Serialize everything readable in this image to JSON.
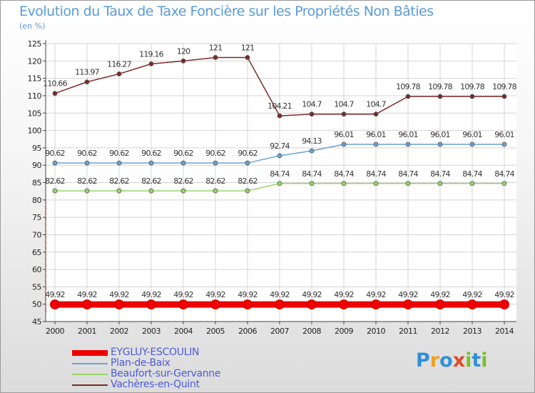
{
  "header": {
    "title": "Evolution du Taux de Taxe Foncière sur les Propriétés Non Bâties",
    "unit": "(en %)"
  },
  "logo": {
    "text": "Proxiti",
    "colors": [
      "#2f8fd8",
      "#f0a020",
      "#2f8fd8",
      "#e24a2a",
      "#7bbf2a",
      "#2f8fd8",
      "#7bbf2a"
    ]
  },
  "chart_data": {
    "type": "line",
    "title": "Evolution du Taux de Taxe Foncière sur les Propriétés Non Bâties",
    "ylabel": "(en %)",
    "xlabel": "",
    "ylim": [
      45,
      125
    ],
    "yticks": [
      45,
      50,
      55,
      60,
      65,
      70,
      75,
      80,
      85,
      90,
      95,
      100,
      105,
      110,
      115,
      120,
      125
    ],
    "x": [
      "2000",
      "2001",
      "2002",
      "2003",
      "2004",
      "2005",
      "2006",
      "2007",
      "2008",
      "2009",
      "2010",
      "2011",
      "2012",
      "2013",
      "2014"
    ],
    "grid": true,
    "legend_position": "bottom-left",
    "series": [
      {
        "name": "EYGLUY-ESCOULIN",
        "color": "#ee0000",
        "values": [
          49.92,
          49.92,
          49.92,
          49.92,
          49.92,
          49.92,
          49.92,
          49.92,
          49.92,
          49.92,
          49.92,
          49.92,
          49.92,
          49.92,
          49.92
        ],
        "labels": [
          "49.92",
          "49.92",
          "49.92",
          "49.92",
          "49.92",
          "49.92",
          "49.92",
          "49.92",
          "49.92",
          "49.92",
          "49.92",
          "49.92",
          "49.92",
          "49.92",
          "49.92"
        ]
      },
      {
        "name": "Plan-de-Baix",
        "color": "#6aa2d2",
        "values": [
          90.62,
          90.62,
          90.62,
          90.62,
          90.62,
          90.62,
          90.62,
          92.74,
          94.13,
          96.01,
          96.01,
          96.01,
          96.01,
          96.01,
          96.01
        ],
        "labels": [
          "90.62",
          "90.62",
          "90.62",
          "90.62",
          "90.62",
          "90.62",
          "90.62",
          "92.74",
          "94.13",
          "96.01",
          "96.01",
          "96.01",
          "96.01",
          "96.01",
          "96.01"
        ]
      },
      {
        "name": "Beaufort-sur-Gervanne",
        "color": "#9bd46a",
        "values": [
          82.62,
          82.62,
          82.62,
          82.62,
          82.62,
          82.62,
          82.62,
          84.74,
          84.74,
          84.74,
          84.74,
          84.74,
          84.74,
          84.74,
          84.74
        ],
        "labels": [
          "82.62",
          "82.62",
          "82.62",
          "82.62",
          "82.62",
          "82.62",
          "82.62",
          "84.74",
          "84.74",
          "84.74",
          "84.74",
          "84.74",
          "84.74",
          "84.74",
          "84.74"
        ]
      },
      {
        "name": "Vachères-en-Quint",
        "color": "#7a2a2a",
        "values": [
          110.66,
          113.97,
          116.27,
          119.16,
          120,
          121,
          121,
          104.21,
          104.7,
          104.7,
          104.7,
          109.78,
          109.78,
          109.78,
          109.78
        ],
        "labels": [
          "110.66",
          "113.97",
          "116.27",
          "119.16",
          "120",
          "121",
          "121",
          "104.21",
          "104.7",
          "104.7",
          "104.7",
          "109.78",
          "109.78",
          "109.78",
          "109.78"
        ]
      }
    ]
  }
}
